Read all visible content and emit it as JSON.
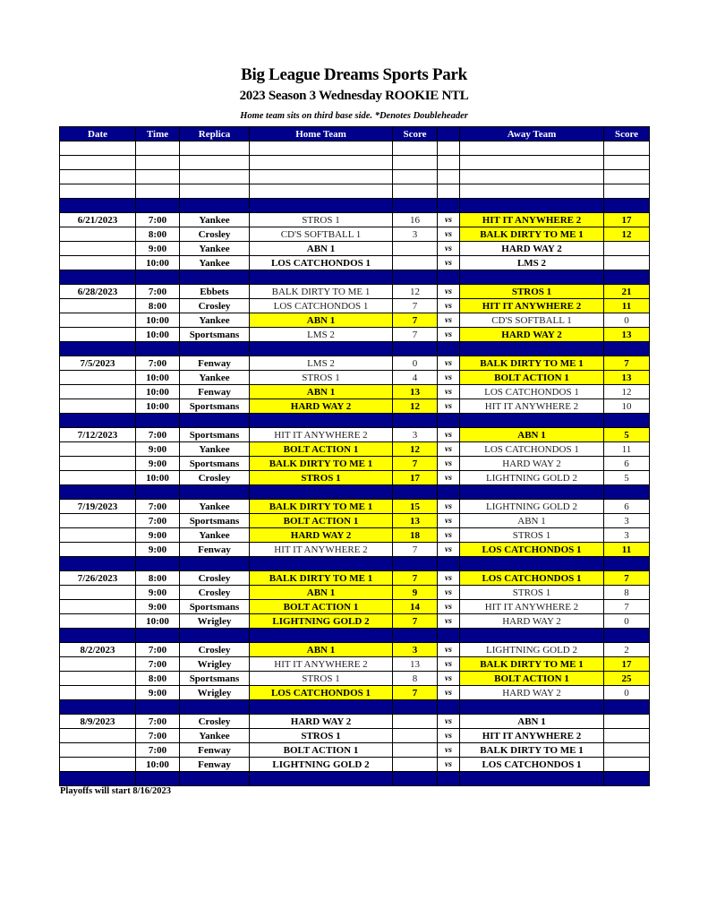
{
  "title": "Big League Dreams Sports Park",
  "subtitle": "2023 Season 3 Wednesday ROOKIE NTL",
  "note": "Home team sits on third base side.  *Denotes Doubleheader",
  "columns": [
    "Date",
    "Time",
    "Replica",
    "Home Team",
    "Score",
    "",
    "Away Team",
    "Score"
  ],
  "vs_label": "vs",
  "colors": {
    "header_blue": "#00008b",
    "winner_yellow": "#ffff00"
  },
  "weeks": [
    {
      "date": "6/21/2023",
      "games": [
        {
          "time": "7:00",
          "field": "Yankee",
          "home": "STROS 1",
          "home_score": "16",
          "away": "HIT IT ANYWHERE 2",
          "away_score": "17",
          "winner": "away"
        },
        {
          "time": "8:00",
          "field": "Crosley",
          "home": "CD'S SOFTBALL 1",
          "home_score": "3",
          "away": "BALK DIRTY TO ME 1",
          "away_score": "12",
          "winner": "away"
        },
        {
          "time": "9:00",
          "field": "Yankee",
          "home": "ABN 1",
          "home_score": "",
          "away": "HARD WAY 2",
          "away_score": "",
          "winner": ""
        },
        {
          "time": "10:00",
          "field": "Yankee",
          "home": "LOS CATCHONDOS 1",
          "home_score": "",
          "away": "LMS 2",
          "away_score": "",
          "winner": ""
        }
      ]
    },
    {
      "date": "6/28/2023",
      "games": [
        {
          "time": "7:00",
          "field": "Ebbets",
          "home": "BALK DIRTY TO ME 1",
          "home_score": "12",
          "away": "STROS 1",
          "away_score": "21",
          "winner": "away"
        },
        {
          "time": "8:00",
          "field": "Crosley",
          "home": "LOS CATCHONDOS 1",
          "home_score": "7",
          "away": "HIT IT ANYWHERE 2",
          "away_score": "11",
          "winner": "away"
        },
        {
          "time": "10:00",
          "field": "Yankee",
          "home": "ABN 1",
          "home_score": "7",
          "away": "CD'S SOFTBALL 1",
          "away_score": "0",
          "winner": "home"
        },
        {
          "time": "10:00",
          "field": "Sportsmans",
          "home": "LMS 2",
          "home_score": "7",
          "away": "HARD WAY 2",
          "away_score": "13",
          "winner": "away"
        }
      ]
    },
    {
      "date": "7/5/2023",
      "games": [
        {
          "time": "7:00",
          "field": "Fenway",
          "home": "LMS 2",
          "home_score": "0",
          "away": "BALK DIRTY TO ME 1",
          "away_score": "7",
          "winner": "away"
        },
        {
          "time": "10:00",
          "field": "Yankee",
          "home": "STROS 1",
          "home_score": "4",
          "away": "BOLT ACTION 1",
          "away_score": "13",
          "winner": "away"
        },
        {
          "time": "10:00",
          "field": "Fenway",
          "home": "ABN 1",
          "home_score": "13",
          "away": "LOS CATCHONDOS 1",
          "away_score": "12",
          "winner": "home"
        },
        {
          "time": "10:00",
          "field": "Sportsmans",
          "home": "HARD WAY 2",
          "home_score": "12",
          "away": "HIT IT ANYWHERE 2",
          "away_score": "10",
          "winner": "home"
        }
      ]
    },
    {
      "date": "7/12/2023",
      "games": [
        {
          "time": "7:00",
          "field": "Sportsmans",
          "home": "HIT IT ANYWHERE 2",
          "home_score": "3",
          "away": "ABN 1",
          "away_score": "5",
          "winner": "away"
        },
        {
          "time": "9:00",
          "field": "Yankee",
          "home": "BOLT ACTION 1",
          "home_score": "12",
          "away": "LOS CATCHONDOS 1",
          "away_score": "11",
          "winner": "home"
        },
        {
          "time": "9:00",
          "field": "Sportsmans",
          "home": "BALK DIRTY TO ME 1",
          "home_score": "7",
          "away": "HARD WAY 2",
          "away_score": "6",
          "winner": "home"
        },
        {
          "time": "10:00",
          "field": "Crosley",
          "home": "STROS 1",
          "home_score": "17",
          "away": "LIGHTNING GOLD 2",
          "away_score": "5",
          "winner": "home"
        }
      ]
    },
    {
      "date": "7/19/2023",
      "games": [
        {
          "time": "7:00",
          "field": "Yankee",
          "home": "BALK DIRTY TO ME 1",
          "home_score": "15",
          "away": "LIGHTNING GOLD 2",
          "away_score": "6",
          "winner": "home"
        },
        {
          "time": "7:00",
          "field": "Sportsmans",
          "home": "BOLT ACTION 1",
          "home_score": "13",
          "away": "ABN 1",
          "away_score": "3",
          "winner": "home"
        },
        {
          "time": "9:00",
          "field": "Yankee",
          "home": "HARD WAY 2",
          "home_score": "18",
          "away": "STROS 1",
          "away_score": "3",
          "winner": "home"
        },
        {
          "time": "9:00",
          "field": "Fenway",
          "home": "HIT IT ANYWHERE 2",
          "home_score": "7",
          "away": "LOS CATCHONDOS 1",
          "away_score": "11",
          "winner": "away"
        }
      ]
    },
    {
      "date": "7/26/2023",
      "games": [
        {
          "time": "8:00",
          "field": "Crosley",
          "home": "BALK DIRTY TO ME 1",
          "home_score": "7",
          "away": "LOS CATCHONDOS 1",
          "away_score": "7",
          "winner": "tie"
        },
        {
          "time": "9:00",
          "field": "Crosley",
          "home": "ABN 1",
          "home_score": "9",
          "away": "STROS 1",
          "away_score": "8",
          "winner": "home"
        },
        {
          "time": "9:00",
          "field": "Sportsmans",
          "home": "BOLT ACTION 1",
          "home_score": "14",
          "away": "HIT IT ANYWHERE 2",
          "away_score": "7",
          "winner": "home"
        },
        {
          "time": "10:00",
          "field": "Wrigley",
          "home": "LIGHTNING GOLD 2",
          "home_score": "7",
          "away": "HARD WAY 2",
          "away_score": "0",
          "winner": "home"
        }
      ]
    },
    {
      "date": "8/2/2023",
      "games": [
        {
          "time": "7:00",
          "field": "Crosley",
          "home": "ABN 1",
          "home_score": "3",
          "away": "LIGHTNING GOLD 2",
          "away_score": "2",
          "winner": "home"
        },
        {
          "time": "7:00",
          "field": "Wrigley",
          "home": "HIT IT ANYWHERE 2",
          "home_score": "13",
          "away": "BALK DIRTY TO ME 1",
          "away_score": "17",
          "winner": "away"
        },
        {
          "time": "8:00",
          "field": "Sportsmans",
          "home": "STROS 1",
          "home_score": "8",
          "away": "BOLT ACTION 1",
          "away_score": "25",
          "winner": "away"
        },
        {
          "time": "9:00",
          "field": "Wrigley",
          "home": "LOS CATCHONDOS 1",
          "home_score": "7",
          "away": "HARD WAY 2",
          "away_score": "0",
          "winner": "home"
        }
      ]
    },
    {
      "date": "8/9/2023",
      "games": [
        {
          "time": "7:00",
          "field": "Crosley",
          "home": "HARD WAY 2",
          "home_score": "",
          "away": "ABN 1",
          "away_score": "",
          "winner": ""
        },
        {
          "time": "7:00",
          "field": "Yankee",
          "home": "STROS 1",
          "home_score": "",
          "away": "HIT IT ANYWHERE 2",
          "away_score": "",
          "winner": ""
        },
        {
          "time": "7:00",
          "field": "Fenway",
          "home": "BOLT ACTION 1",
          "home_score": "",
          "away": "BALK DIRTY TO ME 1",
          "away_score": "",
          "winner": ""
        },
        {
          "time": "10:00",
          "field": "Fenway",
          "home": "LIGHTNING GOLD 2",
          "home_score": "",
          "away": "LOS CATCHONDOS 1",
          "away_score": "",
          "winner": ""
        }
      ]
    }
  ],
  "footer": "Playoffs will start 8/16/2023"
}
